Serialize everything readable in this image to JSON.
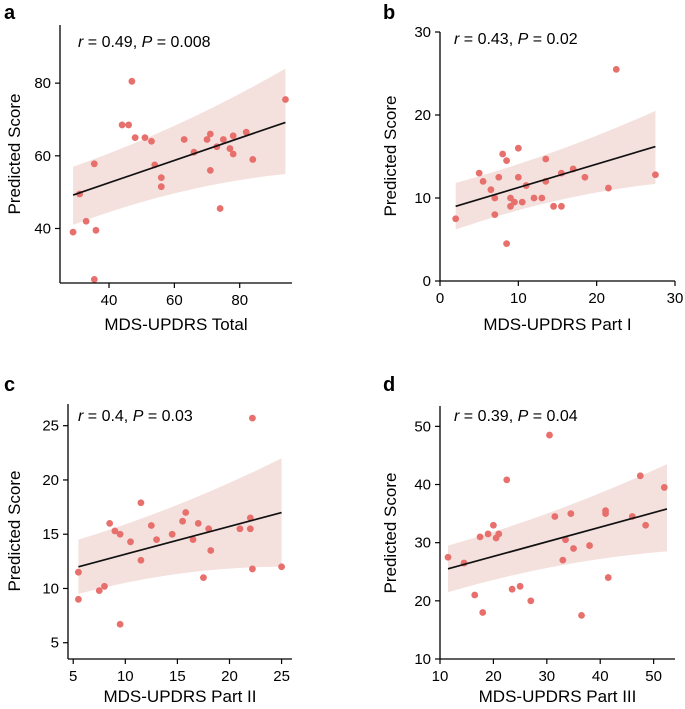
{
  "colors": {
    "point": "#E8706C",
    "band": "#F2DCD8",
    "line": "#111111",
    "axis": "#000000"
  },
  "chart_data": [
    {
      "panel": "a",
      "type": "scatter",
      "xlabel": "MDS-UPDRS Total",
      "ylabel": "Predicted Score",
      "xlim": [
        25,
        96
      ],
      "ylim": [
        25,
        96
      ],
      "xticks": [
        40,
        60,
        80
      ],
      "yticks": [
        40,
        60,
        80
      ],
      "stat": {
        "r_symbol": "r",
        "r_text": " = 0.49, ",
        "p_symbol": "P",
        "p_text": " = 0.008"
      },
      "fit": {
        "x": [
          29,
          94
        ],
        "y": [
          49.2,
          69.2
        ]
      },
      "band": {
        "x": [
          29,
          94
        ],
        "upper": [
          57,
          84
        ],
        "lower": [
          41,
          55
        ]
      },
      "points": [
        [
          29,
          39
        ],
        [
          31,
          49.5
        ],
        [
          33,
          42
        ],
        [
          35.5,
          26
        ],
        [
          35.5,
          57.8
        ],
        [
          36,
          39.5
        ],
        [
          44,
          68.5
        ],
        [
          46,
          68.5
        ],
        [
          47,
          80.5
        ],
        [
          48,
          65
        ],
        [
          51,
          65
        ],
        [
          53,
          64
        ],
        [
          54,
          57.5
        ],
        [
          56,
          51.5
        ],
        [
          56,
          54
        ],
        [
          63,
          64.5
        ],
        [
          66,
          61
        ],
        [
          70,
          64.5
        ],
        [
          71,
          66
        ],
        [
          71,
          56
        ],
        [
          73,
          62.5
        ],
        [
          74,
          45.5
        ],
        [
          75,
          64.5
        ],
        [
          77,
          62
        ],
        [
          78,
          65.5
        ],
        [
          78,
          60.5
        ],
        [
          82,
          66.5
        ],
        [
          84,
          59
        ],
        [
          94,
          75.5
        ]
      ]
    },
    {
      "panel": "b",
      "type": "scatter",
      "xlabel": "MDS-UPDRS Part I",
      "ylabel": "Predicted Score",
      "xlim": [
        0,
        30
      ],
      "ylim": [
        0,
        30
      ],
      "xticks": [
        0,
        10,
        20,
        30
      ],
      "yticks": [
        0,
        10,
        20,
        30
      ],
      "stat": {
        "r_symbol": "r",
        "r_text": " = 0.43, ",
        "p_symbol": "P",
        "p_text": " = 0.02"
      },
      "fit": {
        "x": [
          2,
          27.5
        ],
        "y": [
          9,
          16.2
        ]
      },
      "band": {
        "x": [
          2,
          27.5
        ],
        "upper": [
          11.8,
          20.5
        ],
        "lower": [
          6.2,
          11.7
        ]
      },
      "points": [
        [
          2,
          7.5
        ],
        [
          5,
          13
        ],
        [
          5.5,
          12
        ],
        [
          6.5,
          11
        ],
        [
          7,
          8
        ],
        [
          7,
          10
        ],
        [
          7.5,
          12.5
        ],
        [
          8,
          15.3
        ],
        [
          8.5,
          4.5
        ],
        [
          8.5,
          14.5
        ],
        [
          9,
          10
        ],
        [
          9,
          9
        ],
        [
          9.5,
          9.5
        ],
        [
          10,
          16
        ],
        [
          10,
          12.5
        ],
        [
          10.5,
          9.5
        ],
        [
          11,
          11.5
        ],
        [
          12,
          10
        ],
        [
          13,
          10
        ],
        [
          13.5,
          14.7
        ],
        [
          13.5,
          12
        ],
        [
          14.5,
          9
        ],
        [
          15.5,
          13
        ],
        [
          15.5,
          9
        ],
        [
          17,
          13.5
        ],
        [
          18.5,
          12.5
        ],
        [
          21.5,
          11.2
        ],
        [
          22.5,
          25.5
        ],
        [
          27.5,
          12.8
        ]
      ]
    },
    {
      "panel": "c",
      "type": "scatter",
      "xlabel": "MDS-UPDRS Part II",
      "ylabel": "Predicted Score",
      "xlim": [
        4.5,
        26
      ],
      "ylim": [
        3.5,
        27
      ],
      "xticks": [
        5,
        10,
        15,
        20,
        25
      ],
      "yticks": [
        5,
        10,
        15,
        20,
        25
      ],
      "stat": {
        "r_symbol": "r",
        "r_text": " = 0.4, ",
        "p_symbol": "P",
        "p_text": " = 0.03"
      },
      "fit": {
        "x": [
          5.5,
          25
        ],
        "y": [
          12,
          17
        ]
      },
      "band": {
        "x": [
          5.5,
          25
        ],
        "upper": [
          14.5,
          22
        ],
        "lower": [
          9.5,
          12
        ]
      },
      "points": [
        [
          5.5,
          11.5
        ],
        [
          5.5,
          9
        ],
        [
          7.5,
          9.8
        ],
        [
          8,
          10.2
        ],
        [
          8.5,
          16
        ],
        [
          9,
          15.3
        ],
        [
          9.5,
          6.7
        ],
        [
          9.5,
          15
        ],
        [
          10.5,
          14.3
        ],
        [
          11.5,
          17.9
        ],
        [
          11.5,
          12.6
        ],
        [
          12.5,
          15.8
        ],
        [
          13,
          14.5
        ],
        [
          14.5,
          15
        ],
        [
          15.5,
          16.2
        ],
        [
          15.8,
          17
        ],
        [
          16.5,
          14.5
        ],
        [
          17,
          16
        ],
        [
          17.5,
          11
        ],
        [
          18,
          15.5
        ],
        [
          18.2,
          13.5
        ],
        [
          21,
          15.5
        ],
        [
          22,
          15.5
        ],
        [
          22,
          16.5
        ],
        [
          22.2,
          25.7
        ],
        [
          22.2,
          11.8
        ],
        [
          25,
          12
        ]
      ]
    },
    {
      "panel": "d",
      "type": "scatter",
      "xlabel": "MDS-UPDRS Part III",
      "ylabel": "Predicted Score",
      "xlim": [
        10,
        54
      ],
      "ylim": [
        10,
        53.5
      ],
      "xticks": [
        10,
        20,
        30,
        40,
        50
      ],
      "yticks": [
        10,
        20,
        30,
        40,
        50
      ],
      "stat": {
        "r_symbol": "r",
        "r_text": " = 0.39, ",
        "p_symbol": "P",
        "p_text": " = 0.04"
      },
      "fit": {
        "x": [
          11.5,
          52.5
        ],
        "y": [
          25.5,
          35.8
        ]
      },
      "band": {
        "x": [
          11.5,
          52.5
        ],
        "upper": [
          29.5,
          43.5
        ],
        "lower": [
          21.5,
          28.5
        ]
      },
      "points": [
        [
          11.5,
          27.5
        ],
        [
          14.5,
          26.5
        ],
        [
          16.5,
          21
        ],
        [
          17.5,
          31
        ],
        [
          18,
          18
        ],
        [
          19,
          31.5
        ],
        [
          20,
          33
        ],
        [
          20.5,
          30.8
        ],
        [
          21,
          31.5
        ],
        [
          22.5,
          40.8
        ],
        [
          23.5,
          22
        ],
        [
          25,
          22.5
        ],
        [
          27,
          20
        ],
        [
          30.5,
          48.5
        ],
        [
          31.5,
          34.5
        ],
        [
          33,
          27
        ],
        [
          33.5,
          30.5
        ],
        [
          34.5,
          35
        ],
        [
          35,
          29
        ],
        [
          36.5,
          17.5
        ],
        [
          38,
          29.5
        ],
        [
          41,
          35
        ],
        [
          41,
          35.5
        ],
        [
          41.5,
          24
        ],
        [
          46,
          34.5
        ],
        [
          47.5,
          41.5
        ],
        [
          48.5,
          33
        ],
        [
          52,
          39.5
        ]
      ]
    }
  ]
}
